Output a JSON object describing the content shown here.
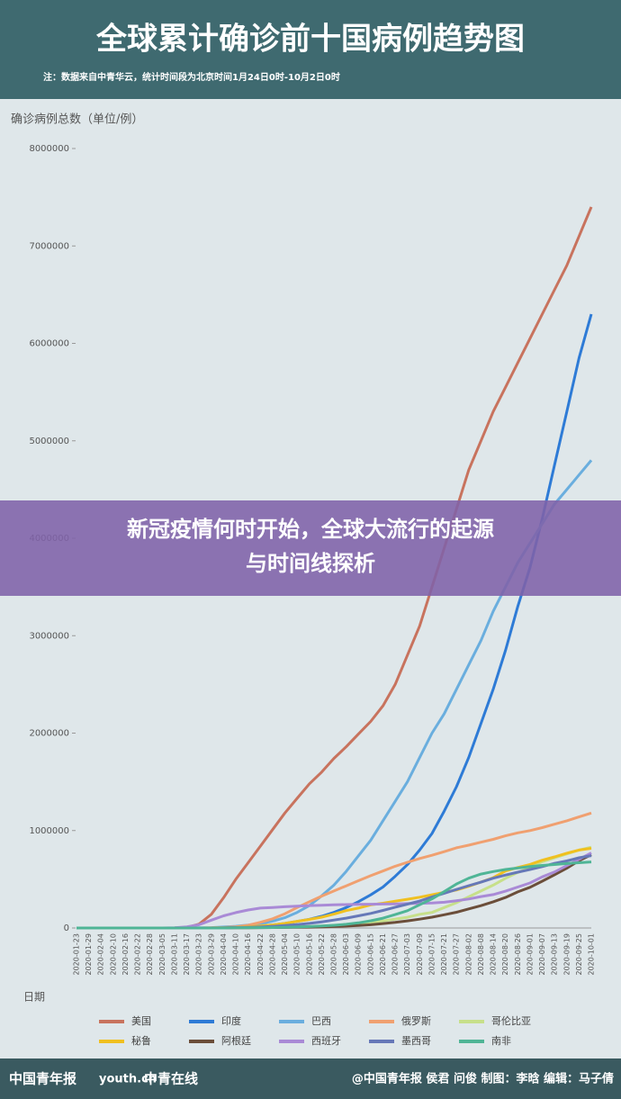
{
  "chart_data": {
    "type": "line",
    "title": "全球累计确诊前十国病例趋势图",
    "subtitle": "注：数据来自中青华云，统计时间段为北京时间1月24日0时-10月2日0时",
    "y_label": "确诊病例总数（单位/例）",
    "x_label": "日期",
    "categories": [
      "2020-01-23",
      "2020-01-29",
      "2020-02-04",
      "2020-02-10",
      "2020-02-16",
      "2020-02-22",
      "2020-02-28",
      "2020-03-05",
      "2020-03-11",
      "2020-03-17",
      "2020-03-23",
      "2020-03-29",
      "2020-04-04",
      "2020-04-10",
      "2020-04-16",
      "2020-04-22",
      "2020-04-28",
      "2020-05-04",
      "2020-05-10",
      "2020-05-16",
      "2020-05-22",
      "2020-05-28",
      "2020-06-03",
      "2020-06-09",
      "2020-06-15",
      "2020-06-21",
      "2020-06-27",
      "2020-07-03",
      "2020-07-09",
      "2020-07-15",
      "2020-07-21",
      "2020-07-27",
      "2020-08-02",
      "2020-08-08",
      "2020-08-14",
      "2020-08-20",
      "2020-08-26",
      "2020-09-01",
      "2020-09-07",
      "2020-09-13",
      "2020-09-19",
      "2020-09-25",
      "2020-10-01"
    ],
    "series": [
      {
        "name": "美国",
        "color": "#c8735e",
        "values": [
          0,
          0,
          0,
          0,
          0,
          0,
          0,
          0,
          1000,
          6000,
          40000,
          140000,
          310000,
          500000,
          670000,
          840000,
          1010000,
          1180000,
          1330000,
          1480000,
          1600000,
          1740000,
          1860000,
          1990000,
          2120000,
          2280000,
          2500000,
          2800000,
          3100000,
          3500000,
          3900000,
          4300000,
          4700000,
          5000000,
          5300000,
          5550000,
          5800000,
          6050000,
          6300000,
          6550000,
          6800000,
          7100000,
          7400000
        ]
      },
      {
        "name": "印度",
        "color": "#2e7bd6",
        "values": [
          0,
          0,
          0,
          0,
          0,
          0,
          0,
          0,
          0,
          0,
          0,
          0,
          3000,
          7000,
          13000,
          21000,
          31000,
          46000,
          67000,
          90000,
          120000,
          160000,
          210000,
          270000,
          340000,
          420000,
          530000,
          650000,
          800000,
          970000,
          1200000,
          1450000,
          1750000,
          2100000,
          2450000,
          2850000,
          3300000,
          3700000,
          4200000,
          4750000,
          5300000,
          5850000,
          6300000
        ]
      },
      {
        "name": "巴西",
        "color": "#6aaede",
        "values": [
          0,
          0,
          0,
          0,
          0,
          0,
          0,
          0,
          0,
          0,
          1500,
          4000,
          10000,
          18000,
          30000,
          45000,
          70000,
          105000,
          160000,
          230000,
          330000,
          440000,
          580000,
          740000,
          900000,
          1100000,
          1300000,
          1500000,
          1750000,
          2000000,
          2200000,
          2450000,
          2700000,
          2950000,
          3250000,
          3500000,
          3750000,
          3950000,
          4150000,
          4350000,
          4500000,
          4650000,
          4800000
        ]
      },
      {
        "name": "俄罗斯",
        "color": "#f0a070",
        "values": [
          0,
          0,
          0,
          0,
          0,
          0,
          0,
          0,
          0,
          0,
          0,
          1500,
          5000,
          12000,
          28000,
          58000,
          94000,
          146000,
          210000,
          270000,
          327000,
          380000,
          432000,
          485000,
          537000,
          585000,
          634000,
          674000,
          713000,
          746000,
          783000,
          823000,
          850000,
          880000,
          910000,
          946000,
          976000,
          1000000,
          1030000,
          1065000,
          1100000,
          1140000,
          1180000
        ]
      },
      {
        "name": "哥伦比亚",
        "color": "#c7e08a",
        "values": [
          0,
          0,
          0,
          0,
          0,
          0,
          0,
          0,
          0,
          0,
          0,
          0,
          1400,
          2500,
          3500,
          4500,
          6000,
          8600,
          11000,
          15000,
          19000,
          26000,
          33000,
          43000,
          55000,
          72000,
          91000,
          110000,
          140000,
          160000,
          210000,
          260000,
          320000,
          380000,
          440000,
          510000,
          570000,
          620000,
          680000,
          720000,
          760000,
          800000,
          830000
        ]
      },
      {
        "name": "秘鲁",
        "color": "#f0c020",
        "values": [
          0,
          0,
          0,
          0,
          0,
          0,
          0,
          0,
          0,
          0,
          0,
          0,
          1700,
          5000,
          12000,
          20000,
          31000,
          48000,
          68000,
          88000,
          111000,
          142000,
          178000,
          204000,
          237000,
          254000,
          275000,
          295000,
          316000,
          341000,
          366000,
          390000,
          428000,
          471000,
          516000,
          585000,
          621000,
          652000,
          696000,
          730000,
          768000,
          800000,
          818000
        ]
      },
      {
        "name": "阿根廷",
        "color": "#6b4e3a",
        "values": [
          0,
          0,
          0,
          0,
          0,
          0,
          0,
          0,
          0,
          0,
          0,
          0,
          0,
          1900,
          2700,
          3300,
          4300,
          5600,
          6600,
          8000,
          10600,
          14700,
          19300,
          24700,
          33000,
          45000,
          57700,
          72800,
          90700,
          111000,
          136000,
          162000,
          196000,
          229000,
          269000,
          313000,
          370000,
          418000,
          480000,
          546000,
          613000,
          691000,
          751000
        ]
      },
      {
        "name": "西班牙",
        "color": "#a98ad6",
        "values": [
          0,
          0,
          0,
          0,
          0,
          0,
          0,
          260,
          2300,
          11800,
          33000,
          80000,
          125000,
          158000,
          185000,
          204000,
          210000,
          218000,
          224000,
          230000,
          234000,
          237000,
          240000,
          242000,
          244000,
          246000,
          248000,
          250000,
          253000,
          257000,
          264000,
          280000,
          297000,
          322000,
          343000,
          378000,
          420000,
          462000,
          525000,
          575000,
          640000,
          705000,
          770000
        ]
      },
      {
        "name": "墨西哥",
        "color": "#6678b8",
        "values": [
          0,
          0,
          0,
          0,
          0,
          0,
          0,
          0,
          0,
          0,
          0,
          0,
          1700,
          3400,
          6300,
          10500,
          16800,
          24900,
          35000,
          47100,
          62500,
          81400,
          101000,
          125000,
          150000,
          180000,
          213000,
          245000,
          276000,
          318000,
          357000,
          395000,
          434000,
          470000,
          511000,
          543000,
          573000,
          600000,
          630000,
          663000,
          688000,
          721000,
          743000
        ]
      },
      {
        "name": "南非",
        "color": "#4fb596",
        "values": [
          0,
          0,
          0,
          0,
          0,
          0,
          0,
          0,
          0,
          0,
          0,
          0,
          0,
          2000,
          2600,
          3500,
          5000,
          7200,
          10000,
          14400,
          20000,
          27400,
          38000,
          53000,
          73500,
          101000,
          138000,
          177000,
          238000,
          298000,
          373000,
          452000,
          511000,
          553000,
          579000,
          600000,
          615000,
          630000,
          642000,
          651000,
          661000,
          670000,
          678000
        ]
      }
    ],
    "ylim": [
      0,
      8000000
    ],
    "yticks": [
      0,
      1000000,
      2000000,
      3000000,
      4000000,
      5000000,
      6000000,
      7000000,
      8000000
    ],
    "grid": false
  },
  "banner": {
    "lines": [
      "新冠疫情何时开始，全球大流行的起源",
      "与时间线探析"
    ]
  },
  "footer": {
    "logos": [
      "中国青年报",
      "youth.cn",
      "中青在线"
    ],
    "credit": "@中国青年报 侯君 问俊  制图：李晗  编辑：马子倩"
  }
}
